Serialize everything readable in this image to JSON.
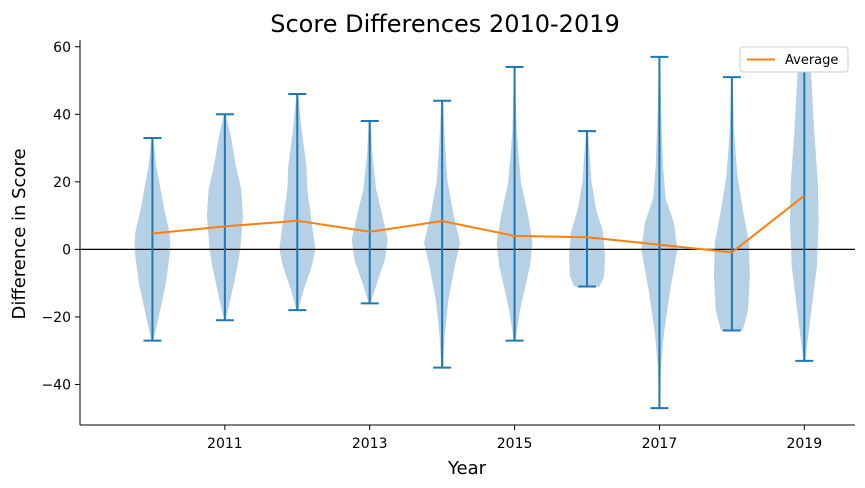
{
  "chart_data": {
    "type": "violin",
    "title": "Score Differences 2010-2019",
    "xlabel": "Year",
    "ylabel": "Difference in Score",
    "xlim": [
      2009.0,
      2019.7
    ],
    "ylim": [
      -52,
      62
    ],
    "x_ticks": [
      2011,
      2013,
      2015,
      2017,
      2019
    ],
    "y_ticks": [
      -40,
      -20,
      0,
      20,
      40,
      60
    ],
    "legend": {
      "position": "top-right",
      "entries": [
        "Average"
      ]
    },
    "grid": false,
    "zero_line": 0,
    "colors": {
      "violin": "#b6d1e6",
      "whisker": "#1f77b4",
      "average": "#ff7f0e",
      "axis": "#000000"
    },
    "series": [
      {
        "name": "Average",
        "x": [
          2010,
          2011,
          2012,
          2013,
          2014,
          2015,
          2016,
          2017,
          2018,
          2019
        ],
        "values": [
          4.7,
          6.8,
          8.5,
          5.2,
          8.4,
          4.0,
          3.6,
          1.4,
          -0.9,
          15.9
        ]
      }
    ],
    "violins": [
      {
        "x": 2010,
        "min": -27,
        "max": 33,
        "shape": [
          [
            -27,
            0.05
          ],
          [
            -20,
            0.35
          ],
          [
            -10,
            0.75
          ],
          [
            0,
            1.0
          ],
          [
            5,
            0.95
          ],
          [
            12,
            0.65
          ],
          [
            18,
            0.45
          ],
          [
            25,
            0.2
          ],
          [
            33,
            0.05
          ]
        ]
      },
      {
        "x": 2011,
        "min": -21,
        "max": 40,
        "shape": [
          [
            -21,
            0.05
          ],
          [
            -15,
            0.3
          ],
          [
            -5,
            0.7
          ],
          [
            0,
            0.85
          ],
          [
            10,
            1.0
          ],
          [
            18,
            0.9
          ],
          [
            25,
            0.6
          ],
          [
            33,
            0.35
          ],
          [
            40,
            0.05
          ]
        ]
      },
      {
        "x": 2012,
        "min": -18,
        "max": 46,
        "shape": [
          [
            -18,
            0.05
          ],
          [
            -12,
            0.35
          ],
          [
            -5,
            0.8
          ],
          [
            0,
            1.0
          ],
          [
            10,
            0.75
          ],
          [
            18,
            0.55
          ],
          [
            25,
            0.5
          ],
          [
            35,
            0.25
          ],
          [
            46,
            0.05
          ]
        ]
      },
      {
        "x": 2013,
        "min": -16,
        "max": 38,
        "shape": [
          [
            -16,
            0.05
          ],
          [
            -10,
            0.4
          ],
          [
            -3,
            0.85
          ],
          [
            3,
            1.0
          ],
          [
            10,
            0.7
          ],
          [
            18,
            0.35
          ],
          [
            28,
            0.15
          ],
          [
            38,
            0.05
          ]
        ]
      },
      {
        "x": 2014,
        "min": -35,
        "max": 44,
        "shape": [
          [
            -35,
            0.05
          ],
          [
            -25,
            0.15
          ],
          [
            -15,
            0.35
          ],
          [
            -5,
            0.7
          ],
          [
            2,
            1.0
          ],
          [
            10,
            0.65
          ],
          [
            20,
            0.3
          ],
          [
            32,
            0.15
          ],
          [
            44,
            0.05
          ]
        ]
      },
      {
        "x": 2015,
        "min": -27,
        "max": 54,
        "shape": [
          [
            -27,
            0.05
          ],
          [
            -18,
            0.3
          ],
          [
            -5,
            0.85
          ],
          [
            2,
            1.0
          ],
          [
            10,
            0.75
          ],
          [
            20,
            0.35
          ],
          [
            35,
            0.12
          ],
          [
            54,
            0.03
          ]
        ]
      },
      {
        "x": 2016,
        "min": -11,
        "max": 35,
        "shape": [
          [
            -11,
            0.7
          ],
          [
            -8,
            0.95
          ],
          [
            -2,
            1.0
          ],
          [
            5,
            0.9
          ],
          [
            12,
            0.5
          ],
          [
            20,
            0.25
          ],
          [
            28,
            0.15
          ],
          [
            35,
            0.05
          ]
        ]
      },
      {
        "x": 2017,
        "min": -47,
        "max": 57,
        "shape": [
          [
            -47,
            0.03
          ],
          [
            -35,
            0.08
          ],
          [
            -25,
            0.25
          ],
          [
            -12,
            0.6
          ],
          [
            0,
            1.0
          ],
          [
            8,
            0.8
          ],
          [
            15,
            0.35
          ],
          [
            25,
            0.2
          ],
          [
            40,
            0.1
          ],
          [
            57,
            0.03
          ]
        ]
      },
      {
        "x": 2018,
        "min": -24,
        "max": 51,
        "shape": [
          [
            -24,
            0.6
          ],
          [
            -18,
            0.9
          ],
          [
            -8,
            1.0
          ],
          [
            2,
            0.95
          ],
          [
            12,
            0.6
          ],
          [
            22,
            0.3
          ],
          [
            35,
            0.12
          ],
          [
            51,
            0.03
          ]
        ]
      },
      {
        "x": 2019,
        "min": -33,
        "max": 55,
        "shape": [
          [
            -33,
            0.05
          ],
          [
            -20,
            0.35
          ],
          [
            -5,
            0.7
          ],
          [
            8,
            0.8
          ],
          [
            20,
            0.75
          ],
          [
            35,
            0.55
          ],
          [
            45,
            0.45
          ],
          [
            55,
            0.35
          ]
        ]
      }
    ]
  }
}
